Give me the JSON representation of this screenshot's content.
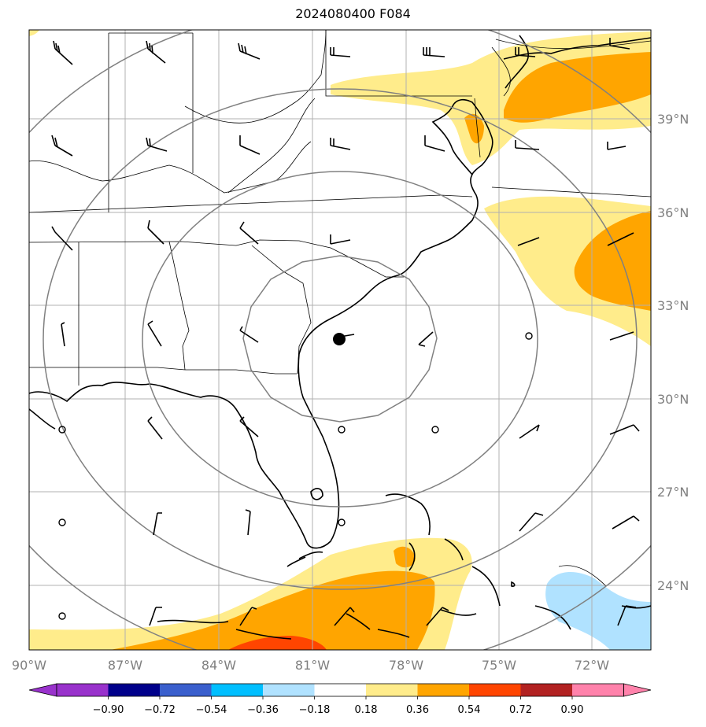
{
  "title": "2024080400 F084",
  "map": {
    "lon_labels": [
      "90°W",
      "87°W",
      "84°W",
      "81°W",
      "78°W",
      "75°W",
      "72°W"
    ],
    "lat_labels": [
      "39°N",
      "36°N",
      "33°N",
      "30°N",
      "27°N",
      "24°N"
    ],
    "storm_center": {
      "lon": -80.0,
      "lat": 31.8,
      "icon": "storm-center-marker"
    }
  },
  "colorbar": {
    "labels": [
      "−0.90",
      "−0.72",
      "−0.54",
      "−0.36",
      "−0.18",
      "0.18",
      "0.36",
      "0.54",
      "0.72",
      "0.90"
    ],
    "colors": [
      "#9932cc",
      "#00008b",
      "#3a5fcd",
      "#00bfff",
      "#b0e2ff",
      "#ffffff",
      "#ffec8b",
      "#ffa500",
      "#ff4500",
      "#b22222",
      "#ff82ab"
    ],
    "under_color": "#9932cc",
    "over_color": "#ff82ab"
  },
  "fill_colors": {
    "light": "#ffec8b",
    "orange": "#ffa500",
    "red": "#ff4500",
    "blue": "#b0e2ff"
  }
}
